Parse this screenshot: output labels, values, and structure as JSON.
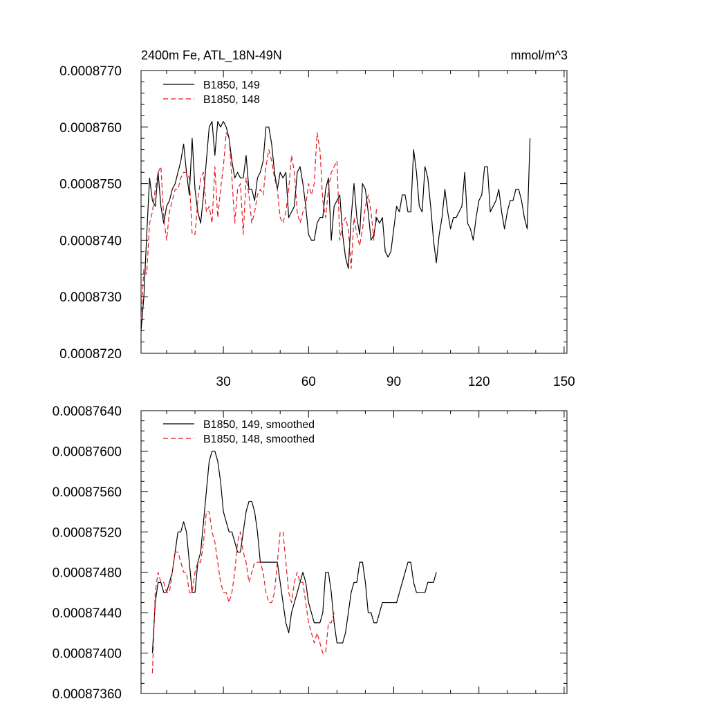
{
  "chart_data": [
    {
      "type": "line",
      "title": "2400m Fe, ATL_18N-49N",
      "units": "mmol/m^3",
      "xlabel": "",
      "ylabel": "",
      "xlim": [
        1,
        151
      ],
      "ylim": [
        0.000872,
        0.000877
      ],
      "xticks": [
        30,
        60,
        90,
        120,
        150
      ],
      "xtick_labels": [
        "30",
        "60",
        "90",
        "120",
        "150"
      ],
      "yticks": [
        0.000872,
        0.000873,
        0.000874,
        0.000875,
        0.000876,
        0.000877
      ],
      "ytick_labels": [
        "0.0008720",
        "0.0008730",
        "0.0008740",
        "0.0008750",
        "0.0008760",
        "0.0008770"
      ],
      "legend_position": "top-left",
      "series": [
        {
          "name": "B1850, 149",
          "color": "#000000",
          "dash": "solid",
          "x_start": 1,
          "values": [
            0.0008724,
            0.000873,
            0.0008741,
            0.0008751,
            0.0008747,
            0.0008746,
            0.0008752,
            0.0008746,
            0.0008743,
            0.0008746,
            0.0008747,
            0.0008749,
            0.000875,
            0.0008752,
            0.0008754,
            0.0008757,
            0.0008752,
            0.0008748,
            0.0008758,
            0.0008749,
            0.0008745,
            0.0008743,
            0.0008748,
            0.0008754,
            0.000876,
            0.0008761,
            0.0008755,
            0.0008761,
            0.000876,
            0.0008761,
            0.000876,
            0.0008758,
            0.0008754,
            0.0008751,
            0.0008752,
            0.0008751,
            0.0008751,
            0.0008755,
            0.0008749,
            0.0008749,
            0.0008747,
            0.0008751,
            0.0008752,
            0.0008754,
            0.000876,
            0.000876,
            0.0008757,
            0.0008752,
            0.0008749,
            0.0008752,
            0.0008751,
            0.0008752,
            0.0008744,
            0.0008745,
            0.0008746,
            0.0008752,
            0.0008753,
            0.000875,
            0.0008746,
            0.0008741,
            0.000874,
            0.000874,
            0.0008743,
            0.0008744,
            0.0008744,
            0.0008749,
            0.0008751,
            0.000874,
            0.0008746,
            0.0008747,
            0.0008748,
            0.0008741,
            0.0008737,
            0.0008735,
            0.0008744,
            0.000875,
            0.0008744,
            0.0008741,
            0.000875,
            0.0008749,
            0.0008745,
            0.000874,
            0.0008741,
            0.0008744,
            0.0008743,
            0.0008744,
            0.0008738,
            0.0008737,
            0.0008738,
            0.0008742,
            0.0008746,
            0.0008745,
            0.0008748,
            0.0008748,
            0.0008745,
            0.0008745,
            0.0008756,
            0.0008752,
            0.0008746,
            0.0008745,
            0.0008753,
            0.0008751,
            0.0008746,
            0.000874,
            0.0008736,
            0.0008741,
            0.0008744,
            0.0008749,
            0.0008745,
            0.0008742,
            0.0008744,
            0.0008744,
            0.0008745,
            0.0008746,
            0.0008752,
            0.0008743,
            0.0008742,
            0.000874,
            0.0008744,
            0.0008747,
            0.0008748,
            0.0008753,
            0.0008753,
            0.0008745,
            0.0008746,
            0.0008747,
            0.0008749,
            0.0008745,
            0.0008742,
            0.0008745,
            0.0008747,
            0.0008747,
            0.0008749,
            0.0008749,
            0.0008747,
            0.0008744,
            0.0008742,
            0.0008758
          ]
        },
        {
          "name": "B1850, 148",
          "color": "#e8171d",
          "dash": "dashed",
          "x_start": 1,
          "values": [
            0.0008726,
            0.0008735,
            0.0008734,
            0.0008743,
            0.0008745,
            0.0008749,
            0.0008752,
            0.0008753,
            0.0008744,
            0.000874,
            0.0008745,
            0.0008747,
            0.0008749,
            0.0008749,
            0.0008751,
            0.0008752,
            0.0008752,
            0.0008751,
            0.0008741,
            0.0008741,
            0.0008747,
            0.0008751,
            0.0008752,
            0.0008745,
            0.0008746,
            0.0008743,
            0.0008753,
            0.0008744,
            0.0008749,
            0.0008753,
            0.0008759,
            0.0008758,
            0.0008751,
            0.0008743,
            0.0008749,
            0.000875,
            0.0008741,
            0.0008751,
            0.0008748,
            0.0008743,
            0.0008745,
            0.0008748,
            0.0008749,
            0.0008748,
            0.0008753,
            0.0008756,
            0.0008754,
            0.0008751,
            0.0008749,
            0.0008744,
            0.0008743,
            0.0008745,
            0.0008749,
            0.0008755,
            0.0008752,
            0.0008745,
            0.0008743,
            0.0008745,
            0.0008746,
            0.000875,
            0.0008748,
            0.000875,
            0.0008759,
            0.0008756,
            0.0008747,
            0.0008744,
            0.0008749,
            0.0008752,
            0.0008753,
            0.0008754,
            0.000874,
            0.0008743,
            0.0008744,
            0.0008742,
            0.0008735,
            0.0008744,
            0.0008741,
            0.0008739,
            0.0008742,
            0.0008746,
            0.0008748,
            0.0008745,
            0.000874,
            0.0008746
          ]
        }
      ]
    },
    {
      "type": "line",
      "title": "",
      "xlabel": "",
      "ylabel": "",
      "xlim": [
        1,
        151
      ],
      "ylim": [
        0.0008736,
        0.0008764
      ],
      "xticks": [
        30,
        60,
        90,
        120,
        150
      ],
      "yticks": [
        0.0008736,
        0.000874,
        0.0008744,
        0.0008748,
        0.0008752,
        0.0008756,
        0.000876,
        0.0008764
      ],
      "ytick_labels": [
        "0.00087360",
        "0.00087400",
        "0.00087440",
        "0.00087480",
        "0.00087520",
        "0.00087560",
        "0.00087600",
        "0.00087640"
      ],
      "legend_position": "top-left",
      "series": [
        {
          "name": "B1850, 149, smoothed",
          "color": "#000000",
          "dash": "solid",
          "x_start": 5,
          "values": [
            0.000874,
            0.0008745,
            0.0008747,
            0.0008747,
            0.0008746,
            0.0008746,
            0.0008747,
            0.0008748,
            0.000875,
            0.0008752,
            0.0008752,
            0.0008753,
            0.0008752,
            0.0008749,
            0.0008746,
            0.0008746,
            0.0008749,
            0.000875,
            0.0008753,
            0.0008756,
            0.0008759,
            0.000876,
            0.000876,
            0.0008759,
            0.0008757,
            0.0008754,
            0.0008753,
            0.0008752,
            0.0008752,
            0.0008751,
            0.000875,
            0.000875,
            0.0008752,
            0.0008754,
            0.0008755,
            0.0008755,
            0.0008754,
            0.0008752,
            0.0008749,
            0.0008749,
            0.0008749,
            0.0008749,
            0.0008749,
            0.0008749,
            0.0008749,
            0.0008747,
            0.0008745,
            0.0008743,
            0.0008742,
            0.0008744,
            0.0008745,
            0.0008746,
            0.0008747,
            0.0008748,
            0.0008747,
            0.0008745,
            0.0008744,
            0.0008743,
            0.0008743,
            0.0008743,
            0.0008744,
            0.0008748,
            0.0008748,
            0.0008746,
            0.0008743,
            0.0008741,
            0.0008741,
            0.0008741,
            0.0008742,
            0.0008744,
            0.0008746,
            0.0008747,
            0.0008747,
            0.0008749,
            0.0008749,
            0.0008747,
            0.0008744,
            0.0008744,
            0.0008743,
            0.0008743,
            0.0008744,
            0.0008745,
            0.0008745,
            0.0008745,
            0.0008745,
            0.0008745,
            0.0008745,
            0.0008746,
            0.0008747,
            0.0008748,
            0.0008749,
            0.0008749,
            0.0008747,
            0.0008746,
            0.0008746,
            0.0008746,
            0.0008746,
            0.0008747,
            0.0008747,
            0.0008747,
            0.0008748
          ]
        },
        {
          "name": "B1850, 148, smoothed",
          "color": "#e8171d",
          "dash": "dashed",
          "x_start": 5,
          "values": [
            0.0008738,
            0.0008746,
            0.0008748,
            0.0008747,
            0.0008747,
            0.0008746,
            0.0008746,
            0.0008748,
            0.000875,
            0.000875,
            0.0008749,
            0.0008748,
            0.0008748,
            0.0008746,
            0.0008746,
            0.0008748,
            0.0008749,
            0.0008749,
            0.0008751,
            0.0008754,
            0.0008754,
            0.0008752,
            0.0008751,
            0.0008749,
            0.0008747,
            0.0008746,
            0.0008746,
            0.0008745,
            0.0008746,
            0.0008748,
            0.0008751,
            0.0008752,
            0.000875,
            0.0008749,
            0.0008747,
            0.0008748,
            0.0008749,
            0.0008749,
            0.0008749,
            0.0008748,
            0.0008746,
            0.0008745,
            0.0008745,
            0.0008746,
            0.0008749,
            0.0008752,
            0.0008752,
            0.0008749,
            0.0008746,
            0.0008745,
            0.0008747,
            0.0008748,
            0.0008747,
            0.0008747,
            0.0008745,
            0.0008743,
            0.0008742,
            0.0008741,
            0.0008742,
            0.0008741,
            0.000874,
            0.000874,
            0.0008743,
            0.0008743,
            0.0008744
          ]
        }
      ]
    }
  ]
}
